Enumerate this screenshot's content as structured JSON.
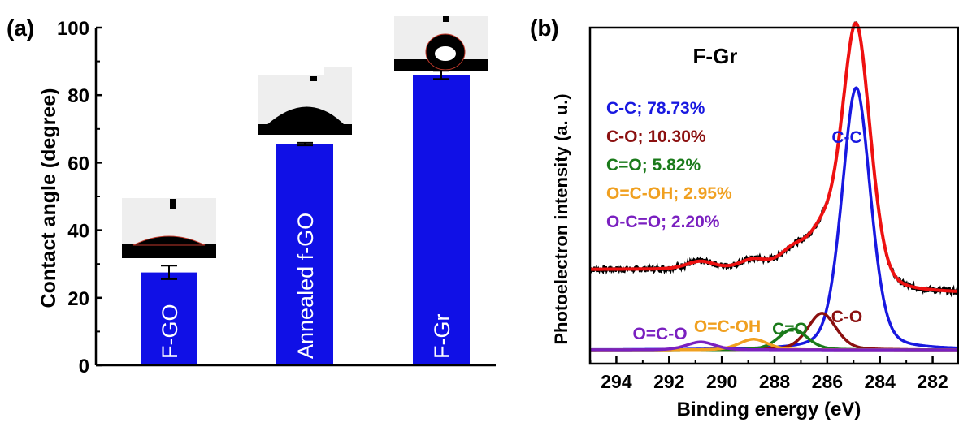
{
  "chart_data": [
    {
      "panel_label": "(a)",
      "type": "bar",
      "categories": [
        "F-GO",
        "Annealed f-GO",
        "F-Gr"
      ],
      "values": [
        27.5,
        65.5,
        86.0
      ],
      "errors": [
        2.0,
        0.4,
        1.2
      ],
      "ylabel": "Contact angle (degree)",
      "ylim": [
        0,
        100
      ],
      "yticks": [
        "0",
        "20",
        "40",
        "60",
        "80",
        "100"
      ],
      "bar_color": "#1010e6",
      "bar_label_color": "#ffffff"
    },
    {
      "panel_label": "(b)",
      "type": "line",
      "title": "F-Gr",
      "xlabel": "Binding energy (eV)",
      "ylabel": "Photoelectron intensity (a. u.)",
      "xlim": [
        295,
        281
      ],
      "xticks": [
        "294",
        "292",
        "290",
        "288",
        "286",
        "284",
        "282"
      ],
      "grid": false,
      "legend": [
        {
          "text": "C-C; 78.73%",
          "color": "#1818e0"
        },
        {
          "text": "C-O; 10.30%",
          "color": "#8b1010"
        },
        {
          "text": "C=O; 5.82%",
          "color": "#1a7a1a"
        },
        {
          "text": "O=C-OH; 2.95%",
          "color": "#f0a020"
        },
        {
          "text": "O-C=O; 2.20%",
          "color": "#7a20c0"
        }
      ],
      "peaks": [
        {
          "label": "C-C",
          "center": 284.9,
          "height": 0.93,
          "width": 0.55,
          "color": "#1818e0"
        },
        {
          "label": "C-O",
          "center": 286.2,
          "height": 0.13,
          "width": 0.55,
          "color": "#8b1010"
        },
        {
          "label": "C=O",
          "center": 287.3,
          "height": 0.074,
          "width": 0.55,
          "color": "#1a7a1a"
        },
        {
          "label": "O=C-OH",
          "center": 288.8,
          "height": 0.038,
          "width": 0.55,
          "color": "#f0a020"
        },
        {
          "label": "O-C=O",
          "center": 290.8,
          "height": 0.028,
          "width": 0.55,
          "color": "#7a20c0"
        }
      ],
      "series": [
        {
          "name": "measured",
          "color": "#000000"
        },
        {
          "name": "fit envelope",
          "color": "#ee1111"
        }
      ],
      "baseline_color": "#1010e6"
    }
  ]
}
